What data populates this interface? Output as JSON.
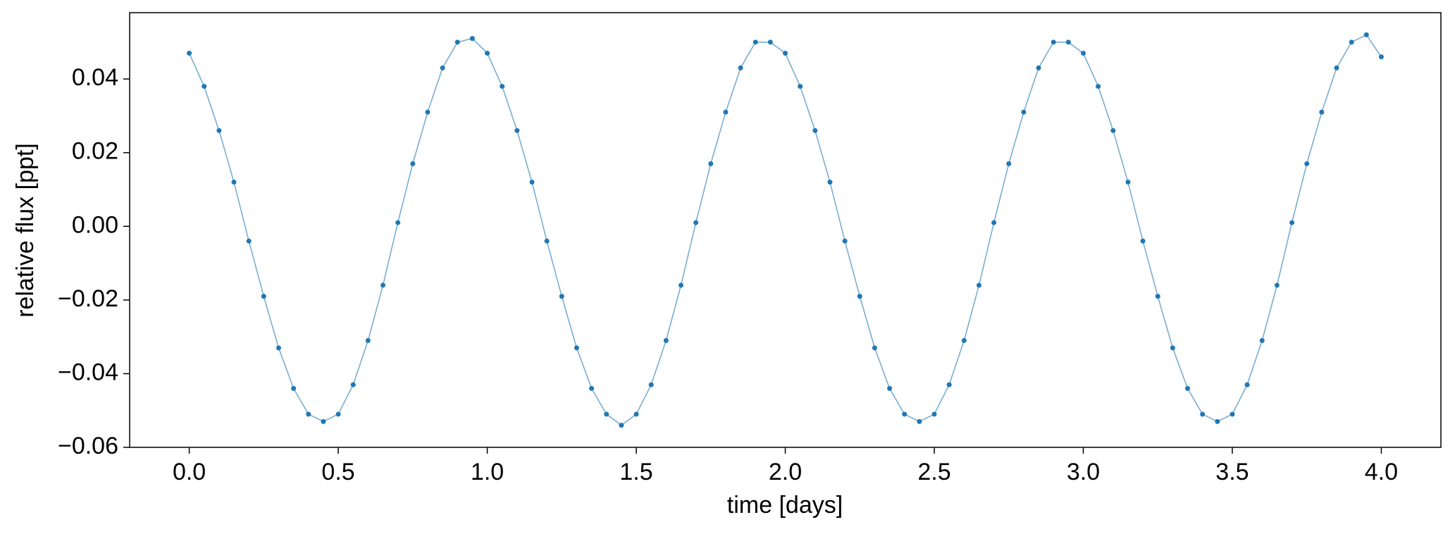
{
  "chart_data": {
    "type": "line",
    "markers": true,
    "color": "#1f77b4",
    "xlabel": "time [days]",
    "ylabel": "relative flux [ppt]",
    "xlim": [
      -0.2,
      4.2
    ],
    "ylim": [
      -0.06,
      0.058
    ],
    "xticks": [
      {
        "value": 0,
        "label": "0.0"
      },
      0.5,
      {
        "value": 1,
        "label": "1.0"
      },
      1.5,
      {
        "value": 2,
        "label": "2.0"
      },
      2.5,
      {
        "value": 3,
        "label": "3.0"
      },
      3.5,
      {
        "value": 4,
        "label": "4.0"
      }
    ],
    "yticks": [
      {
        "value": -0.06,
        "label": "−0.06"
      },
      {
        "value": -0.04,
        "label": "−0.04"
      },
      {
        "value": -0.02,
        "label": "−0.02"
      },
      {
        "value": 0,
        "label": "0.00"
      },
      0.02,
      0.04
    ],
    "x": [
      0,
      0.05,
      0.1,
      0.15,
      0.2,
      0.25,
      0.3,
      0.35,
      0.4,
      0.45,
      0.5,
      0.55,
      0.6,
      0.65,
      0.7,
      0.75,
      0.8,
      0.85,
      0.9,
      0.95,
      1,
      1.05,
      1.1,
      1.15,
      1.2,
      1.25,
      1.3,
      1.35,
      1.4,
      1.45,
      1.5,
      1.55,
      1.6,
      1.65,
      1.7,
      1.75,
      1.8,
      1.85,
      1.9,
      1.95,
      2,
      2.05,
      2.1,
      2.15,
      2.2,
      2.25,
      2.3,
      2.35,
      2.4,
      2.45,
      2.5,
      2.55,
      2.6,
      2.65,
      2.7,
      2.75,
      2.8,
      2.85,
      2.9,
      2.95,
      3,
      3.05,
      3.1,
      3.15,
      3.2,
      3.25,
      3.3,
      3.35,
      3.4,
      3.45,
      3.5,
      3.55,
      3.6,
      3.65,
      3.7,
      3.75,
      3.8,
      3.85,
      3.9,
      3.95,
      4
    ],
    "values": [
      0.047,
      0.038,
      0.026,
      0.012,
      -0.004,
      -0.019,
      -0.033,
      -0.044,
      -0.051,
      -0.053,
      -0.051,
      -0.043,
      -0.031,
      -0.016,
      0.001,
      0.017,
      0.031,
      0.043,
      0.05,
      0.051,
      0.047,
      0.038,
      0.026,
      0.012,
      -0.004,
      -0.019,
      -0.033,
      -0.044,
      -0.051,
      -0.054,
      -0.051,
      -0.043,
      -0.031,
      -0.016,
      0.001,
      0.017,
      0.031,
      0.043,
      0.05,
      0.05,
      0.047,
      0.038,
      0.026,
      0.012,
      -0.004,
      -0.019,
      -0.033,
      -0.044,
      -0.051,
      -0.053,
      -0.051,
      -0.043,
      -0.031,
      -0.016,
      0.001,
      0.017,
      0.031,
      0.043,
      0.05,
      0.05,
      0.047,
      0.038,
      0.026,
      0.012,
      -0.004,
      -0.019,
      -0.033,
      -0.044,
      -0.051,
      -0.053,
      -0.051,
      -0.043,
      -0.031,
      -0.016,
      0.001,
      0.017,
      0.031,
      0.043,
      0.05,
      0.052,
      0.046
    ]
  }
}
